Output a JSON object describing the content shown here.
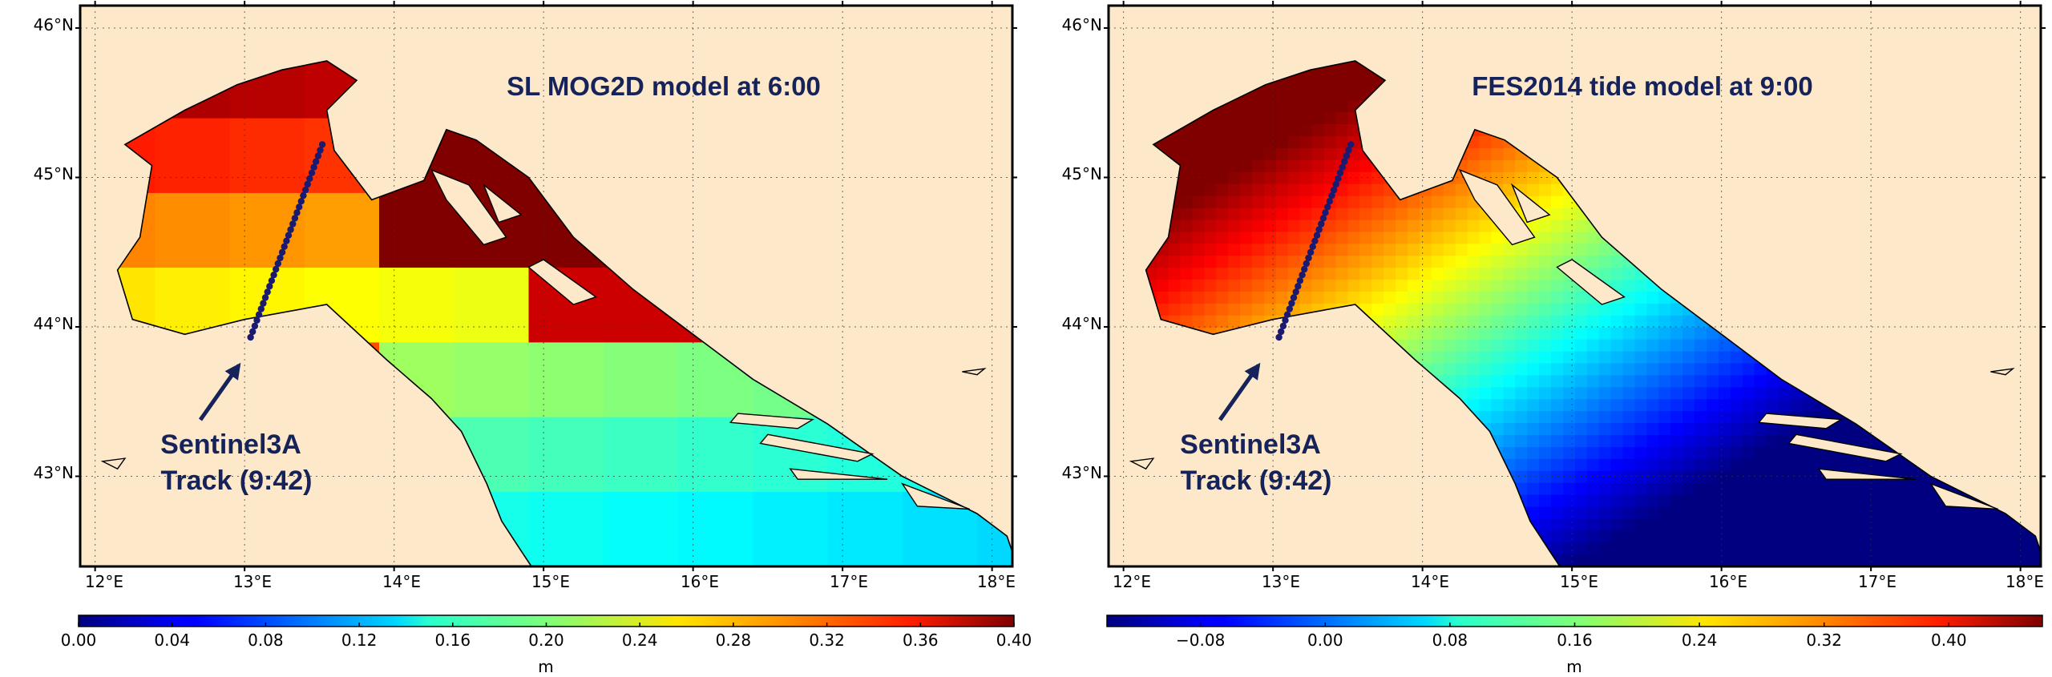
{
  "colors": {
    "land": "#fde9c9",
    "coast": "#000000",
    "track": "#1a1a70",
    "annotation": "#16235a"
  },
  "panels": [
    {
      "id": "mog2d",
      "title": "SL MOG2D model at 6:00",
      "annotation_lines": [
        "Sentinel3A",
        "Track (9:42)"
      ],
      "lon_ticks": [
        "12°E",
        "13°E",
        "14°E",
        "15°E",
        "16°E",
        "17°E",
        "18°E"
      ],
      "lat_ticks": [
        "46°N",
        "45°N",
        "44°N",
        "43°N"
      ],
      "colorbar": {
        "colormap": "jet",
        "vmin": 0.0,
        "vmax": 0.4,
        "ticks": [
          "0.00",
          "0.04",
          "0.08",
          "0.12",
          "0.16",
          "0.20",
          "0.24",
          "0.28",
          "0.32",
          "0.36",
          "0.40"
        ],
        "label": "m"
      },
      "field": "coarse-grid sea level, highest (~0.40 m) in the northern basin and the Kvarner gulf, decreasing southeastward to ~0.18–0.22 m"
    },
    {
      "id": "fes2014",
      "title": "FES2014 tide model at 9:00",
      "annotation_lines": [
        "Sentinel3A",
        "Track (9:42)"
      ],
      "lon_ticks": [
        "12°E",
        "13°E",
        "14°E",
        "15°E",
        "16°E",
        "17°E",
        "18°E"
      ],
      "lat_ticks": [
        "46°N",
        "45°N",
        "44°N",
        "43°N"
      ],
      "colorbar": {
        "colormap": "jet",
        "vmin": -0.14,
        "vmax": 0.46,
        "ticks": [
          "−0.08",
          "0.00",
          "0.08",
          "0.16",
          "0.24",
          "0.32",
          "0.40"
        ],
        "label": "m"
      },
      "field": "smooth tide gradient from ~0.46 m in the north to ~−0.14 m in the southeast"
    }
  ],
  "map_extent": {
    "lon": [
      11.9,
      18.1
    ],
    "lat": [
      42.4,
      46.15
    ]
  },
  "track": {
    "start": [
      13.04,
      43.93
    ],
    "end": [
      13.52,
      45.22
    ]
  }
}
